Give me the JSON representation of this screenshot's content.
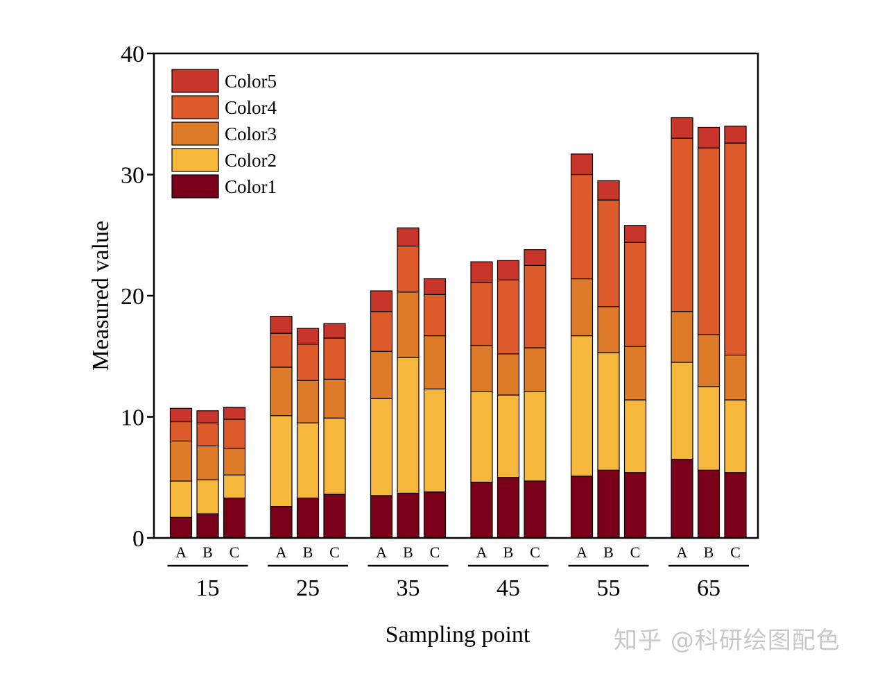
{
  "chart_data": {
    "type": "bar",
    "stacked": true,
    "title": "",
    "xlabel": "Sampling point",
    "ylabel": "Measured value",
    "ylim": [
      0,
      40
    ],
    "yticks": [
      "0",
      "10",
      "20",
      "30",
      "40"
    ],
    "groups": [
      "15",
      "25",
      "35",
      "45",
      "55",
      "65"
    ],
    "subcategories": [
      "A",
      "B",
      "C"
    ],
    "legend_position": "top-left",
    "series": [
      {
        "name": "Color1",
        "color": "#7a0019",
        "values": [
          1.7,
          2.0,
          3.3,
          2.6,
          3.3,
          3.6,
          3.5,
          3.7,
          3.8,
          4.6,
          5.0,
          4.7,
          5.1,
          5.6,
          5.4,
          6.5,
          5.6,
          5.4
        ]
      },
      {
        "name": "Color2",
        "color": "#f5b83d",
        "values": [
          3.0,
          2.8,
          1.9,
          7.5,
          6.2,
          6.3,
          8.0,
          11.2,
          8.5,
          7.5,
          6.8,
          7.4,
          11.6,
          9.7,
          6.0,
          8.0,
          6.9,
          6.0
        ]
      },
      {
        "name": "Color3",
        "color": "#de7b28",
        "values": [
          3.3,
          2.8,
          2.2,
          4.0,
          3.5,
          3.2,
          3.9,
          5.4,
          4.4,
          3.8,
          3.4,
          3.6,
          4.7,
          3.8,
          4.4,
          4.2,
          4.3,
          3.7
        ]
      },
      {
        "name": "Color4",
        "color": "#dd5a2b",
        "values": [
          1.6,
          1.9,
          2.4,
          2.8,
          3.0,
          3.4,
          3.3,
          3.8,
          3.4,
          5.2,
          6.1,
          6.8,
          8.6,
          8.8,
          8.6,
          14.3,
          15.4,
          17.5
        ]
      },
      {
        "name": "Color5",
        "color": "#c8352a",
        "values": [
          1.1,
          1.0,
          1.0,
          1.4,
          1.3,
          1.2,
          1.7,
          1.5,
          1.3,
          1.7,
          1.6,
          1.3,
          1.7,
          1.6,
          1.4,
          1.7,
          1.7,
          1.4
        ]
      }
    ]
  },
  "watermark": "知乎 @科研绘图配色"
}
